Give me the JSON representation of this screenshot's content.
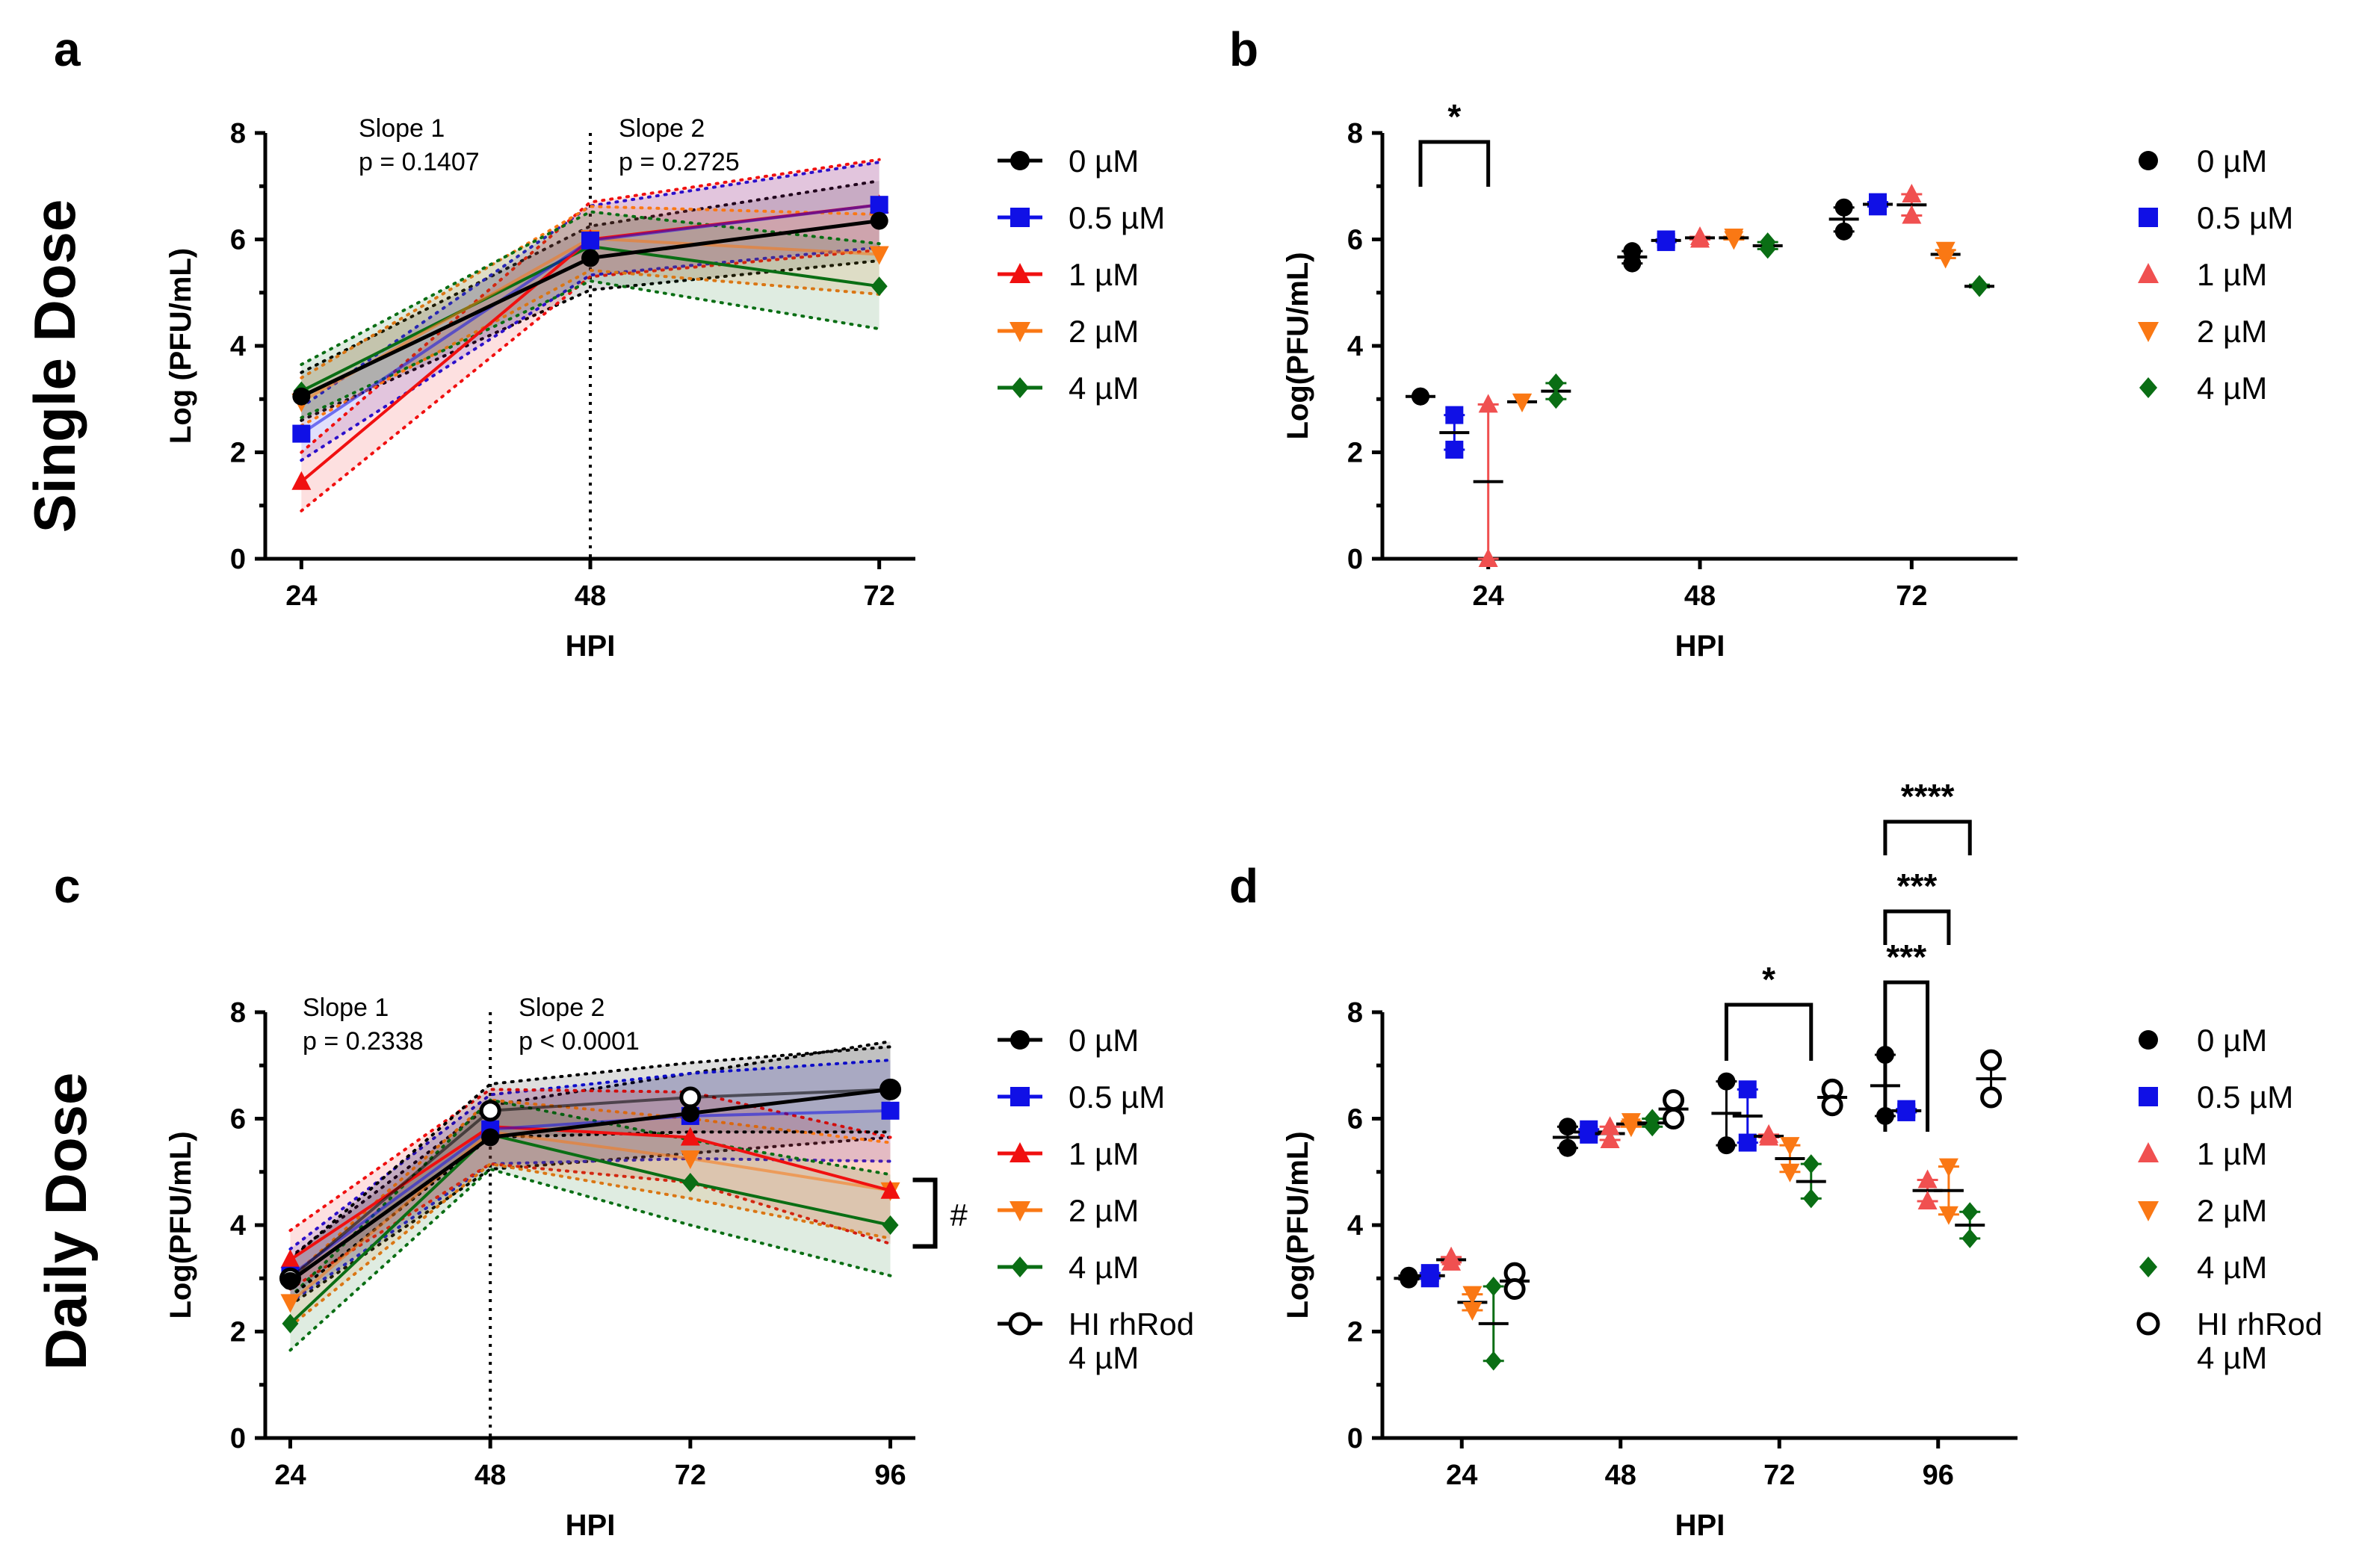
{
  "rows": [
    "Single Dose",
    "Daily Dose"
  ],
  "legend_a": [
    "0 µM",
    "0.5 µM",
    "1 µM",
    "2 µM",
    "4 µM"
  ],
  "legend_b": [
    "0 µM",
    "0.5 µM",
    "1 µM",
    "2 µM",
    "4 µM"
  ],
  "legend_c": [
    "0 µM",
    "0.5 µM",
    "1 µM",
    "2 µM",
    "4 µM",
    "HI rhRod",
    "4 µM"
  ],
  "legend_d": [
    "0 µM",
    "0.5 µM",
    "1 µM",
    "2 µM",
    "4 µM",
    "HI rhRod",
    "4 µM"
  ],
  "colors": {
    "0": "#000000",
    "0.5": "#1010e6",
    "1": "#f01010",
    "1_scatter": "#f05050",
    "2": "#fa7814",
    "4": "#0a6e14",
    "HI": "#000000"
  },
  "chart_data": [
    {
      "panel": "a",
      "type": "line",
      "xlabel": "HPI",
      "ylabel": "Log (PFU/mL)",
      "x": [
        24,
        48,
        72
      ],
      "ylim": [
        0,
        8
      ],
      "yticks": [
        0,
        2,
        4,
        6,
        8
      ],
      "annotations": [
        {
          "title": "Slope 1",
          "p": "p = 0.1407"
        },
        {
          "title": "Slope 2",
          "p": "p = 0.2725"
        }
      ],
      "series": [
        {
          "name": "0 µM",
          "values": [
            3.05,
            5.65,
            6.35
          ]
        },
        {
          "name": "0.5 µM",
          "values": [
            2.35,
            5.98,
            6.65
          ]
        },
        {
          "name": "1 µM",
          "values": [
            1.45,
            6.0,
            6.65
          ]
        },
        {
          "name": "2 µM",
          "values": [
            2.95,
            6.02,
            5.72
          ]
        },
        {
          "name": "4 µM",
          "values": [
            3.15,
            5.87,
            5.12
          ]
        }
      ]
    },
    {
      "panel": "b",
      "type": "scatter",
      "xlabel": "HPI",
      "ylabel": "Log(PFU/mL)",
      "categories": [
        "24",
        "48",
        "72"
      ],
      "ylim": [
        0,
        8
      ],
      "yticks": [
        0,
        2,
        4,
        6,
        8
      ],
      "significance": [
        {
          "between": [
            "0 µM",
            "1 µM"
          ],
          "at": "24",
          "label": "*"
        }
      ],
      "series": [
        {
          "name": "0 µM",
          "points": [
            [
              3.05,
              3.05
            ],
            [
              5.78,
              5.55
            ],
            [
              6.6,
              6.15
            ]
          ],
          "mean": [
            3.05,
            5.67,
            6.38
          ]
        },
        {
          "name": "0.5 µM",
          "points": [
            [
              2.7,
              2.05
            ],
            [
              6.0,
              5.95
            ],
            [
              6.7,
              6.62
            ]
          ],
          "mean": [
            2.37,
            5.98,
            6.66
          ]
        },
        {
          "name": "1 µM",
          "points": [
            [
              2.9,
              0.0
            ],
            [
              6.05,
              6.0
            ],
            [
              6.85,
              6.45
            ]
          ],
          "mean": [
            1.45,
            6.03,
            6.65
          ]
        },
        {
          "name": "2 µM",
          "points": [
            [
              2.95,
              2.95
            ],
            [
              6.05,
              6.0
            ],
            [
              5.8,
              5.65
            ]
          ],
          "mean": [
            2.95,
            6.03,
            5.72
          ]
        },
        {
          "name": "4 µM",
          "points": [
            [
              3.3,
              3.0
            ],
            [
              5.95,
              5.82
            ],
            [
              5.15,
              5.1
            ]
          ],
          "mean": [
            3.15,
            5.88,
            5.12
          ]
        }
      ]
    },
    {
      "panel": "c",
      "type": "line",
      "xlabel": "HPI",
      "ylabel": "Log(PFU/mL)",
      "x": [
        24,
        48,
        72,
        96
      ],
      "ylim": [
        0,
        8
      ],
      "yticks": [
        0,
        2,
        4,
        6,
        8
      ],
      "annotations": [
        {
          "title": "Slope 1",
          "p": "p = 0.2338"
        },
        {
          "title": "Slope 2",
          "p": "p < 0.0001"
        },
        {
          "label": "#"
        }
      ],
      "series": [
        {
          "name": "0 µM",
          "values": [
            2.95,
            5.65,
            6.1,
            6.55
          ]
        },
        {
          "name": "0.5 µM",
          "values": [
            3.05,
            5.8,
            6.05,
            6.15
          ]
        },
        {
          "name": "1 µM",
          "values": [
            3.35,
            5.85,
            5.65,
            4.65
          ]
        },
        {
          "name": "2 µM",
          "values": [
            2.55,
            5.75,
            5.25,
            4.65
          ]
        },
        {
          "name": "4 µM",
          "values": [
            2.15,
            5.7,
            4.8,
            4.0
          ]
        },
        {
          "name": "HI rhRod 4 µM",
          "values": [
            3.0,
            6.15,
            6.4,
            6.55
          ]
        }
      ]
    },
    {
      "panel": "d",
      "type": "scatter",
      "xlabel": "HPI",
      "ylabel": "Log(PFU/mL)",
      "categories": [
        "24",
        "48",
        "72",
        "96"
      ],
      "ylim": [
        0,
        8
      ],
      "yticks": [
        0,
        2,
        4,
        6,
        8
      ],
      "significance": [
        {
          "at": "72",
          "between": [
            "0 µM",
            "4 µM"
          ],
          "label": "*"
        },
        {
          "at": "96",
          "between": [
            "0 µM",
            "1 µM"
          ],
          "label": "***"
        },
        {
          "at": "96",
          "between": [
            "0 µM",
            "2 µM"
          ],
          "label": "***"
        },
        {
          "at": "96",
          "between": [
            "0 µM",
            "4 µM"
          ],
          "label": "****"
        }
      ],
      "series": [
        {
          "name": "0 µM",
          "points": [
            [
              3.05,
              2.98
            ],
            [
              5.85,
              5.45
            ],
            [
              6.7,
              5.5
            ],
            [
              7.2,
              6.05
            ]
          ],
          "mean": [
            3.0,
            5.65,
            6.1,
            6.62
          ]
        },
        {
          "name": "0.5 µM",
          "points": [
            [
              3.1,
              3.0
            ],
            [
              5.8,
              5.7
            ],
            [
              6.55,
              5.55
            ],
            [
              6.18,
              6.12
            ]
          ],
          "mean": [
            3.05,
            5.75,
            6.05,
            6.15
          ]
        },
        {
          "name": "1 µM",
          "points": [
            [
              3.4,
              3.3
            ],
            [
              5.85,
              5.6
            ],
            [
              5.7,
              5.65
            ],
            [
              4.85,
              4.45
            ]
          ],
          "mean": [
            3.35,
            5.72,
            5.67,
            4.65
          ]
        },
        {
          "name": "2 µM",
          "points": [
            [
              2.7,
              2.4
            ],
            [
              5.95,
              5.85
            ],
            [
              5.5,
              5.0
            ],
            [
              5.1,
              4.2
            ]
          ],
          "mean": [
            2.55,
            5.9,
            5.25,
            4.65
          ]
        },
        {
          "name": "4 µM",
          "points": [
            [
              2.85,
              1.45
            ],
            [
              6.0,
              5.85
            ],
            [
              5.15,
              4.5
            ],
            [
              4.25,
              3.75
            ]
          ],
          "mean": [
            2.15,
            5.92,
            4.82,
            4.0
          ]
        },
        {
          "name": "HI rhRod 4 µM",
          "points": [
            [
              3.1,
              2.8
            ],
            [
              6.35,
              6.0
            ],
            [
              6.55,
              6.25
            ],
            [
              7.1,
              6.4
            ]
          ],
          "mean": [
            2.95,
            6.18,
            6.4,
            6.75
          ]
        }
      ]
    }
  ]
}
